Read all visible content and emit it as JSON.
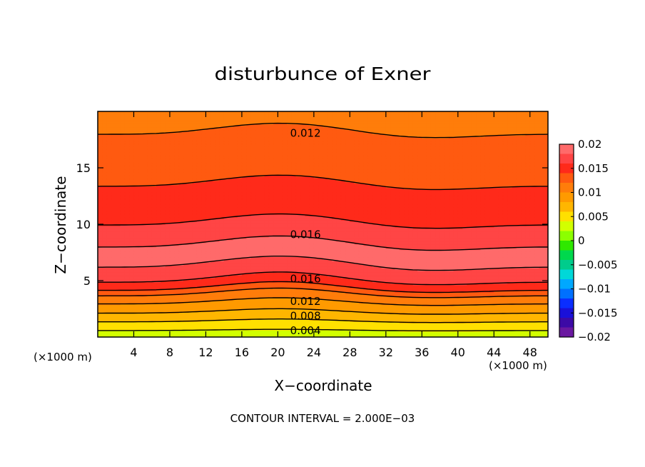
{
  "chart_data": {
    "type": "heatmap",
    "title": "disturbunce of Exner",
    "xlabel": "X−coordinate",
    "ylabel": "Z−coordinate",
    "xlim": [
      0,
      50
    ],
    "ylim": [
      0,
      20
    ],
    "x_ticks": [
      4,
      8,
      12,
      16,
      20,
      24,
      28,
      32,
      36,
      40,
      44,
      48
    ],
    "y_ticks": [
      5,
      10,
      15
    ],
    "x_unit_left": "(×1000 m)",
    "x_unit_right": "(×1000 m)",
    "footer": "CONTOUR INTERVAL = 2.000E−03",
    "contour_interval": 0.002,
    "grid": false,
    "colorbar": {
      "ticks": [
        "0.02",
        "0.015",
        "0.01",
        "0.005",
        "0",
        "−0.005",
        "−0.01",
        "−0.015",
        "−0.02"
      ],
      "tick_values": [
        0.02,
        0.015,
        0.01,
        0.005,
        0,
        -0.005,
        -0.01,
        -0.015,
        -0.02
      ],
      "levels": [
        0.02,
        0.018,
        0.016,
        0.014,
        0.012,
        0.01,
        0.008,
        0.006,
        0.004,
        0.002,
        0,
        -0.002,
        -0.004,
        -0.006,
        -0.008,
        -0.01,
        -0.012,
        -0.014,
        -0.016,
        -0.018,
        -0.02
      ],
      "colors": [
        "#ff6a6a",
        "#ff4545",
        "#ff2a1a",
        "#ff5a10",
        "#ff7d0a",
        "#ff9a00",
        "#ffb600",
        "#ffe000",
        "#d2ff00",
        "#8cff00",
        "#2fe800",
        "#00d84d",
        "#00cc8c",
        "#00d8d8",
        "#00a8ff",
        "#0070ff",
        "#0a2eff",
        "#1a10d8",
        "#3c0aa6",
        "#6a18a0"
      ],
      "placement": "right"
    },
    "profile": {
      "z": [
        0,
        0.4,
        0.8,
        1.2,
        1.6,
        2.0,
        2.4,
        2.8,
        3.3,
        3.8,
        4.3,
        4.8,
        5.3,
        6.0,
        7.5,
        8.5,
        9.5,
        11.5,
        13.6,
        16,
        18.2,
        20
      ],
      "value": [
        0.0025,
        0.0035,
        0.0045,
        0.0055,
        0.0065,
        0.0075,
        0.0085,
        0.0095,
        0.0105,
        0.012,
        0.014,
        0.0155,
        0.0165,
        0.0178,
        0.0185,
        0.0178,
        0.0165,
        0.015,
        0.014,
        0.013,
        0.012,
        0.0115
      ]
    },
    "contour_labels": [
      {
        "x": 18,
        "z": 18.2,
        "text": "0.012"
      },
      {
        "x": 18,
        "z": 9.2,
        "text": "0.016"
      },
      {
        "x": 18,
        "z": 5.3,
        "text": "0.016"
      },
      {
        "x": 18,
        "z": 3.3,
        "text": "0.012"
      },
      {
        "x": 18,
        "z": 2.0,
        "text": "0.008"
      },
      {
        "x": 18,
        "z": 0.7,
        "text": "0.004"
      }
    ]
  }
}
